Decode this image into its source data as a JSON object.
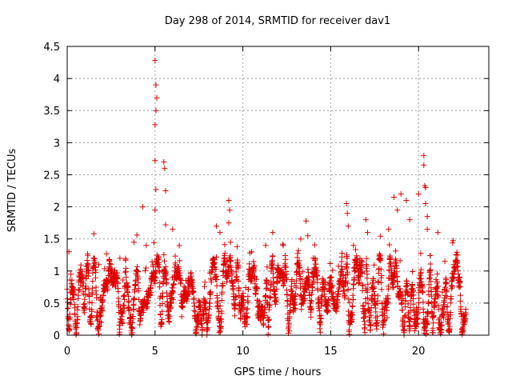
{
  "chart_data": {
    "type": "scatter",
    "title": "Day 298 of 2014, SRMTID for receiver dav1",
    "xlabel": "GPS time / hours",
    "ylabel": "SRMTID / TECUs",
    "xlim": [
      0,
      24
    ],
    "ylim": [
      0,
      4.5
    ],
    "xticks": [
      0,
      5,
      10,
      15,
      20
    ],
    "xtick_labels": [
      "0",
      "5",
      "10",
      "15",
      "20"
    ],
    "yticks": [
      0,
      0.5,
      1,
      1.5,
      2,
      2.5,
      3,
      3.5,
      4,
      4.5
    ],
    "ytick_labels": [
      "0",
      "0.5",
      "1",
      "1.5",
      "2",
      "2.5",
      "3",
      "3.5",
      "4",
      "4.5"
    ],
    "grid": true,
    "marker": "plus",
    "series": [
      {
        "name": "dav1",
        "color": "#e00000",
        "x_range": [
          0,
          22.7
        ],
        "typical_range": [
          0.2,
          1.0
        ],
        "spikes": [
          {
            "x": 0.1,
            "y": 1.3
          },
          {
            "x": 1.8,
            "y": 1.1
          },
          {
            "x": 2.5,
            "y": 1.1
          },
          {
            "x": 3.0,
            "y": 1.2
          },
          {
            "x": 3.8,
            "y": 1.45
          },
          {
            "x": 4.3,
            "y": 2.0
          },
          {
            "x": 4.5,
            "y": 1.4
          },
          {
            "x": 5.0,
            "y": 4.28
          },
          {
            "x": 5.05,
            "y": 3.9
          },
          {
            "x": 5.1,
            "y": 3.7
          },
          {
            "x": 5.05,
            "y": 3.5
          },
          {
            "x": 5.0,
            "y": 3.28
          },
          {
            "x": 5.0,
            "y": 2.72
          },
          {
            "x": 5.05,
            "y": 2.27
          },
          {
            "x": 5.0,
            "y": 1.95
          },
          {
            "x": 5.5,
            "y": 2.7
          },
          {
            "x": 5.55,
            "y": 2.6
          },
          {
            "x": 5.6,
            "y": 2.25
          },
          {
            "x": 5.6,
            "y": 1.72
          },
          {
            "x": 6.0,
            "y": 1.65
          },
          {
            "x": 8.5,
            "y": 1.7
          },
          {
            "x": 8.7,
            "y": 1.6
          },
          {
            "x": 9.2,
            "y": 2.1
          },
          {
            "x": 9.25,
            "y": 1.95
          },
          {
            "x": 9.2,
            "y": 1.75
          },
          {
            "x": 9.3,
            "y": 1.45
          },
          {
            "x": 10.5,
            "y": 1.3
          },
          {
            "x": 11.3,
            "y": 1.4
          },
          {
            "x": 11.7,
            "y": 1.6
          },
          {
            "x": 12.3,
            "y": 1.4
          },
          {
            "x": 13.3,
            "y": 1.5
          },
          {
            "x": 13.6,
            "y": 1.78
          },
          {
            "x": 13.7,
            "y": 1.55
          },
          {
            "x": 14.0,
            "y": 1.2
          },
          {
            "x": 15.9,
            "y": 2.05
          },
          {
            "x": 15.95,
            "y": 1.9
          },
          {
            "x": 16.0,
            "y": 1.7
          },
          {
            "x": 16.3,
            "y": 1.4
          },
          {
            "x": 17.0,
            "y": 1.8
          },
          {
            "x": 17.1,
            "y": 1.6
          },
          {
            "x": 18.3,
            "y": 1.65
          },
          {
            "x": 18.6,
            "y": 2.15
          },
          {
            "x": 18.8,
            "y": 1.95
          },
          {
            "x": 19.0,
            "y": 2.2
          },
          {
            "x": 19.3,
            "y": 2.1
          },
          {
            "x": 19.5,
            "y": 1.8
          },
          {
            "x": 20.0,
            "y": 2.2
          },
          {
            "x": 20.3,
            "y": 2.8
          },
          {
            "x": 20.3,
            "y": 2.65
          },
          {
            "x": 20.35,
            "y": 2.33
          },
          {
            "x": 20.4,
            "y": 2.3
          },
          {
            "x": 20.4,
            "y": 2.05
          },
          {
            "x": 20.5,
            "y": 1.85
          },
          {
            "x": 20.5,
            "y": 1.65
          },
          {
            "x": 21.1,
            "y": 1.6
          },
          {
            "x": 21.5,
            "y": 1.15
          },
          {
            "x": 22.0,
            "y": 1.1
          }
        ]
      }
    ]
  }
}
